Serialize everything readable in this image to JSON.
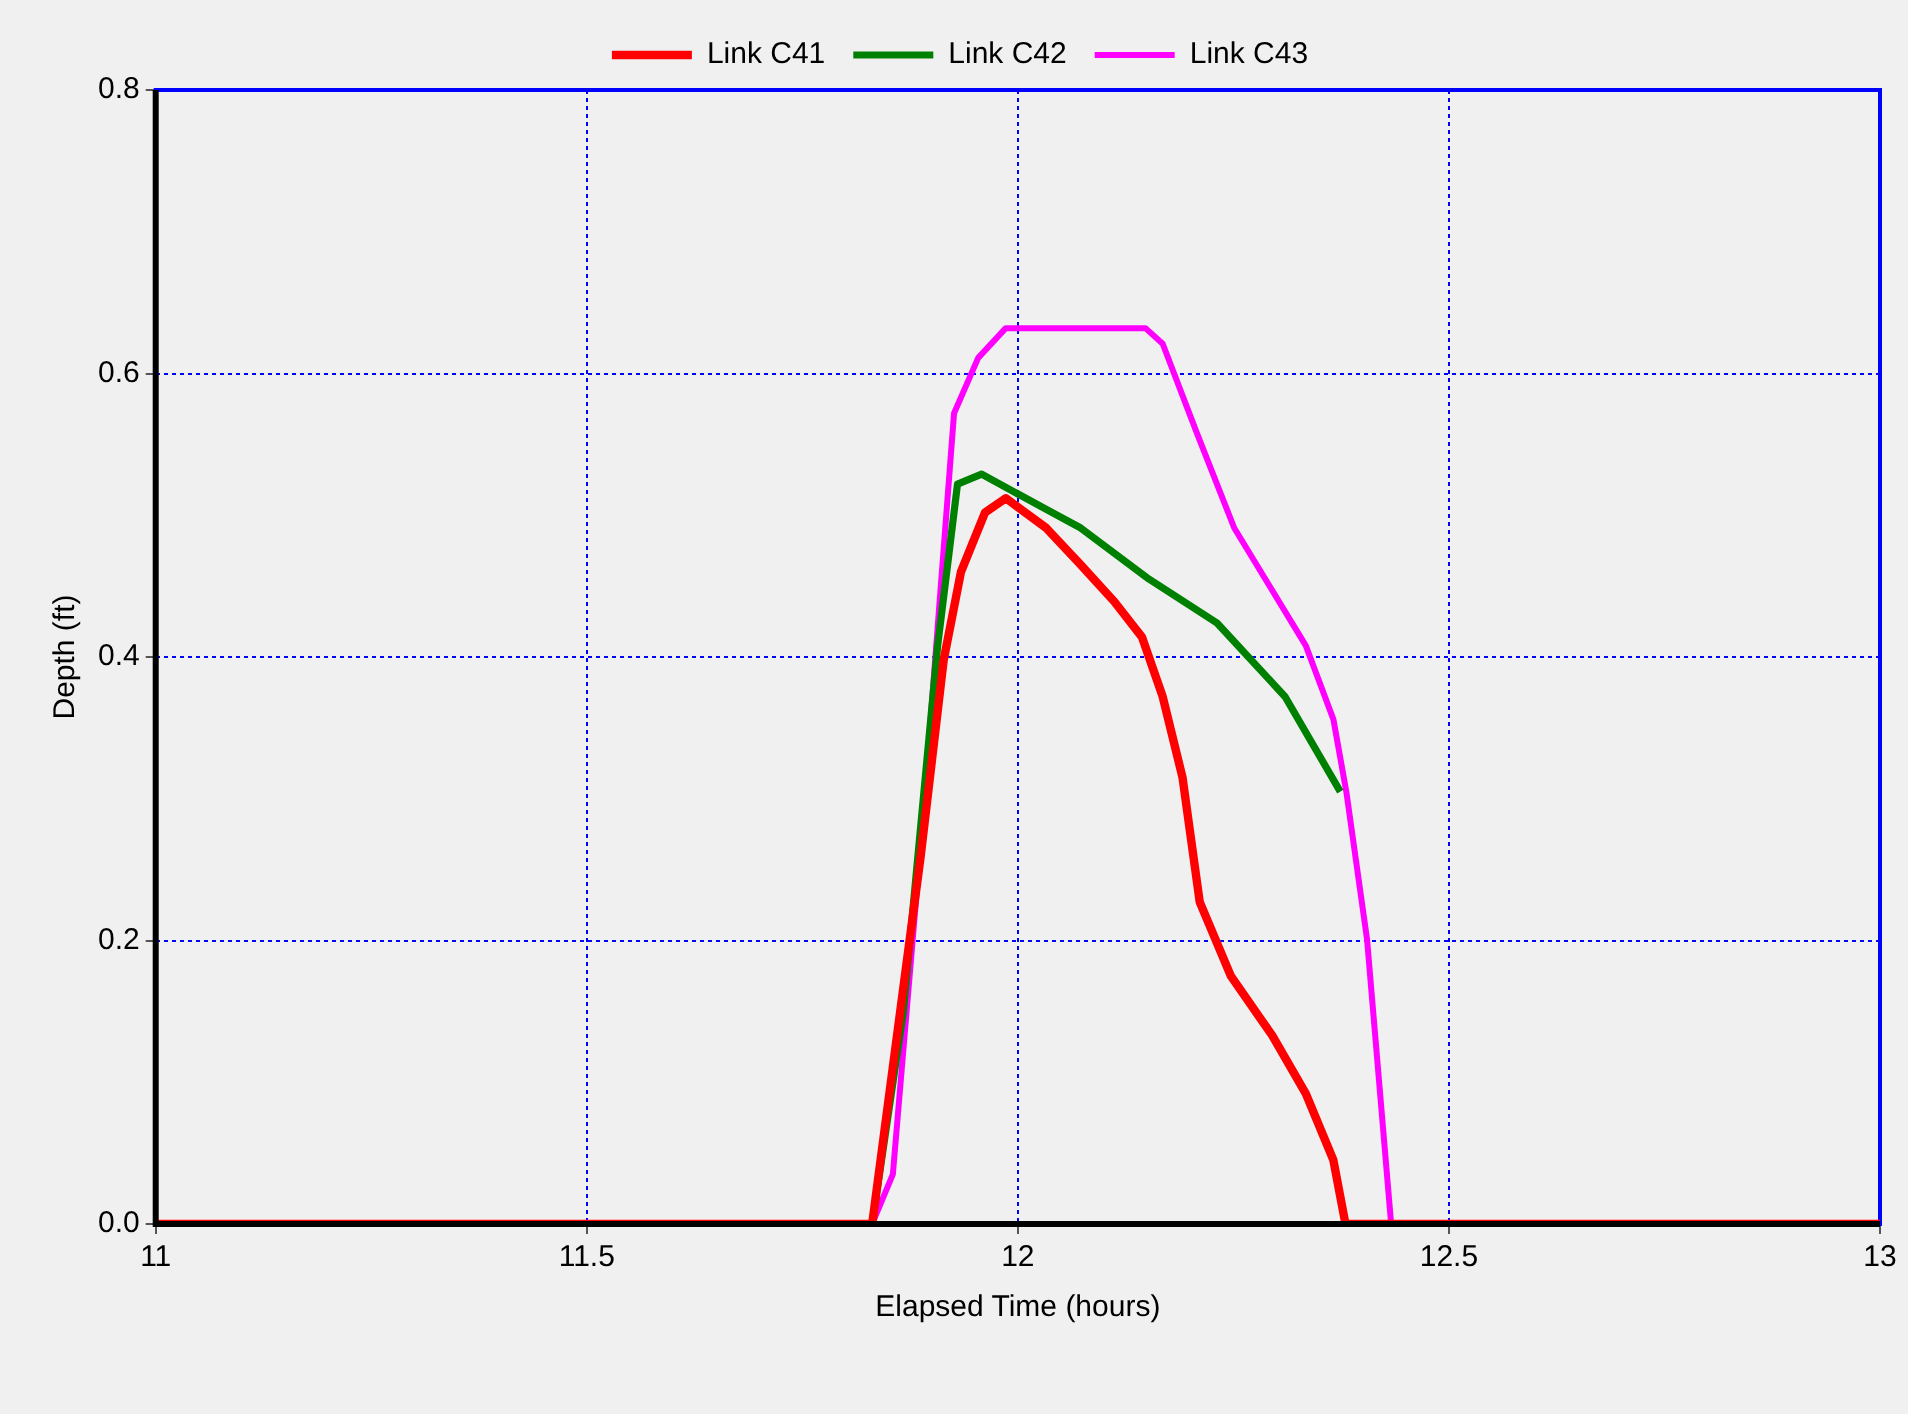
{
  "chart_data": {
    "type": "line",
    "xlabel": "Elapsed Time (hours)",
    "ylabel": "Depth (ft)",
    "xlim": [
      11,
      13
    ],
    "xticks": [
      11,
      11.5,
      12,
      12.5,
      13
    ],
    "ylim": [
      0,
      0.8
    ],
    "yticks": [
      {
        "value": 0,
        "label": "0.0"
      },
      {
        "value": 0.2,
        "label": "0.2"
      },
      {
        "value": 0.4,
        "label": "0.4"
      },
      {
        "value": 0.6,
        "label": "0.6"
      },
      {
        "value": 0.8,
        "label": "0.8"
      }
    ],
    "grid": true,
    "legend": "top",
    "marker": "none",
    "line_style": "solid",
    "series": [
      {
        "name": "Link C41",
        "color": "#ff0000",
        "x": [
          11,
          11.831,
          11.887,
          11.914,
          11.934,
          11.962,
          11.986,
          12.033,
          12.073,
          12.112,
          12.144,
          12.168,
          12.191,
          12.211,
          12.247,
          12.295,
          12.334,
          12.366,
          12.38,
          13
        ],
        "values": [
          0,
          0,
          0.258,
          0.398,
          0.46,
          0.502,
          0.512,
          0.491,
          0.465,
          0.439,
          0.414,
          0.372,
          0.315,
          0.227,
          0.175,
          0.133,
          0.092,
          0.045,
          0,
          0
        ]
      },
      {
        "name": "Link C42",
        "color": "#008000",
        "x": [
          11,
          11.831,
          11.867,
          11.907,
          11.93,
          11.958,
          11.994,
          12.073,
          12.152,
          12.231,
          12.31,
          12.374
        ],
        "values": [
          0,
          0,
          0.149,
          0.408,
          0.522,
          0.529,
          0.517,
          0.491,
          0.455,
          0.424,
          0.372,
          0.305
        ]
      },
      {
        "name": "Link C43",
        "color": "#ff00ff",
        "x": [
          11,
          11.831,
          11.855,
          11.891,
          11.926,
          11.954,
          11.986,
          12.148,
          12.168,
          12.207,
          12.251,
          12.287,
          12.334,
          12.366,
          12.381,
          12.405,
          12.433,
          13
        ],
        "values": [
          0,
          0,
          0.035,
          0.294,
          0.572,
          0.611,
          0.632,
          0.632,
          0.621,
          0.559,
          0.491,
          0.455,
          0.408,
          0.356,
          0.305,
          0.201,
          0,
          0
        ]
      }
    ]
  }
}
